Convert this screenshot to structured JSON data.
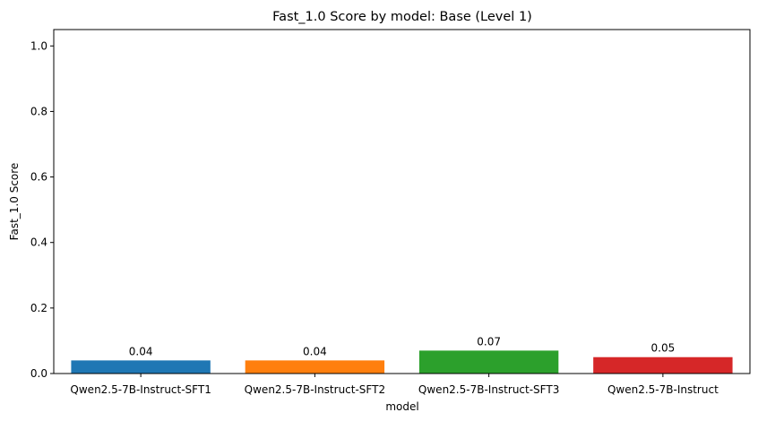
{
  "chart_data": {
    "type": "bar",
    "title": "Fast_1.0 Score by model: Base (Level 1)",
    "xlabel": "model",
    "ylabel": "Fast_1.0 Score",
    "categories": [
      "Qwen2.5-7B-Instruct-SFT1",
      "Qwen2.5-7B-Instruct-SFT2",
      "Qwen2.5-7B-Instruct-SFT3",
      "Qwen2.5-7B-Instruct"
    ],
    "values": [
      0.04,
      0.04,
      0.07,
      0.05
    ],
    "value_labels": [
      "0.04",
      "0.04",
      "0.07",
      "0.05"
    ],
    "colors": [
      "#1f77b4",
      "#ff7f0e",
      "#2ca02c",
      "#d62728"
    ],
    "ylim": [
      0,
      1.05
    ],
    "yticks": [
      0.0,
      0.2,
      0.4,
      0.6,
      0.8,
      1.0
    ],
    "ytick_labels": [
      "0.0",
      "0.2",
      "0.4",
      "0.6",
      "0.8",
      "1.0"
    ],
    "grid": false,
    "legend": "none"
  }
}
